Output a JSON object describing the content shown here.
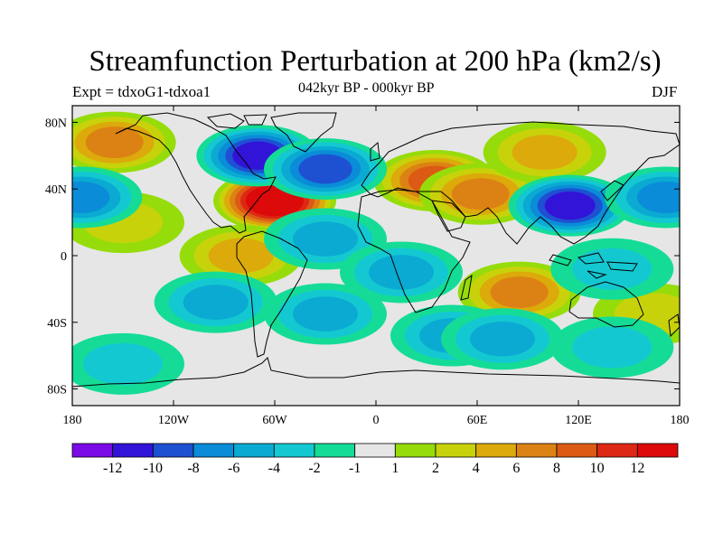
{
  "title": "Streamfunction Perturbation at 200 hPa (km2/s)",
  "left_subtitle": "Expt = tdxoG1-tdxoa1",
  "center_subtitle": "042kyr BP - 000kyr BP",
  "right_subtitle": "DJF",
  "map": {
    "projection": "cylindrical-equidistant",
    "lon_range": [
      -180,
      180
    ],
    "lat_range": [
      -90,
      90
    ],
    "lat_ticks": [
      {
        "lat": 80,
        "label": "80N"
      },
      {
        "lat": 40,
        "label": "40N"
      },
      {
        "lat": 0,
        "label": "0"
      },
      {
        "lat": -40,
        "label": "40S"
      },
      {
        "lat": -80,
        "label": "80S"
      }
    ],
    "lon_ticks": [
      {
        "lon": -180,
        "label": "180"
      },
      {
        "lon": -120,
        "label": "120W"
      },
      {
        "lon": -60,
        "label": "60W"
      },
      {
        "lon": 0,
        "label": "0"
      },
      {
        "lon": 60,
        "label": "60E"
      },
      {
        "lon": 120,
        "label": "120E"
      },
      {
        "lon": 180,
        "label": "180"
      }
    ],
    "background_color": "#e6e6e6",
    "anomalies": [
      {
        "lon": -60,
        "lat": 33,
        "level": 8
      },
      {
        "lon": -155,
        "lat": 68,
        "level": 4
      },
      {
        "lon": 35,
        "lat": 45,
        "level": 5
      },
      {
        "lon": 62,
        "lat": 37,
        "level": 4
      },
      {
        "lon": 100,
        "lat": 62,
        "level": 3
      },
      {
        "lon": 85,
        "lat": -22,
        "level": 4
      },
      {
        "lon": -80,
        "lat": 0,
        "level": 3
      },
      {
        "lon": -150,
        "lat": 20,
        "level": 2
      },
      {
        "lon": 165,
        "lat": -35,
        "level": 2
      },
      {
        "lon": -70,
        "lat": 60,
        "level": -6
      },
      {
        "lon": -30,
        "lat": 52,
        "level": -5
      },
      {
        "lon": 115,
        "lat": 30,
        "level": -6
      },
      {
        "lon": -175,
        "lat": 35,
        "level": -4
      },
      {
        "lon": 172,
        "lat": 35,
        "level": -4
      },
      {
        "lon": -30,
        "lat": 10,
        "level": -3
      },
      {
        "lon": 15,
        "lat": -10,
        "level": -3
      },
      {
        "lon": -95,
        "lat": -28,
        "level": -3
      },
      {
        "lon": -30,
        "lat": -35,
        "level": -3
      },
      {
        "lon": 140,
        "lat": -8,
        "level": -2
      },
      {
        "lon": 45,
        "lat": -48,
        "level": -3
      },
      {
        "lon": 75,
        "lat": -50,
        "level": -3
      },
      {
        "lon": 140,
        "lat": -55,
        "level": -2
      },
      {
        "lon": -150,
        "lat": -65,
        "level": -2
      }
    ]
  },
  "colorbar": {
    "colors": [
      "#7a0ae6",
      "#3214d8",
      "#1e50d2",
      "#0a8cd8",
      "#0aaad2",
      "#14c8d2",
      "#14dc96",
      "#e6e6e6",
      "#96dc0a",
      "#c8d20a",
      "#dcaa0a",
      "#dc8214",
      "#dc5a14",
      "#dc2814",
      "#dc0a0a"
    ],
    "labels": [
      "-12",
      "-10",
      "-8",
      "-6",
      "-4",
      "-2",
      "-1",
      "1",
      "2",
      "4",
      "6",
      "8",
      "10",
      "12"
    ]
  }
}
